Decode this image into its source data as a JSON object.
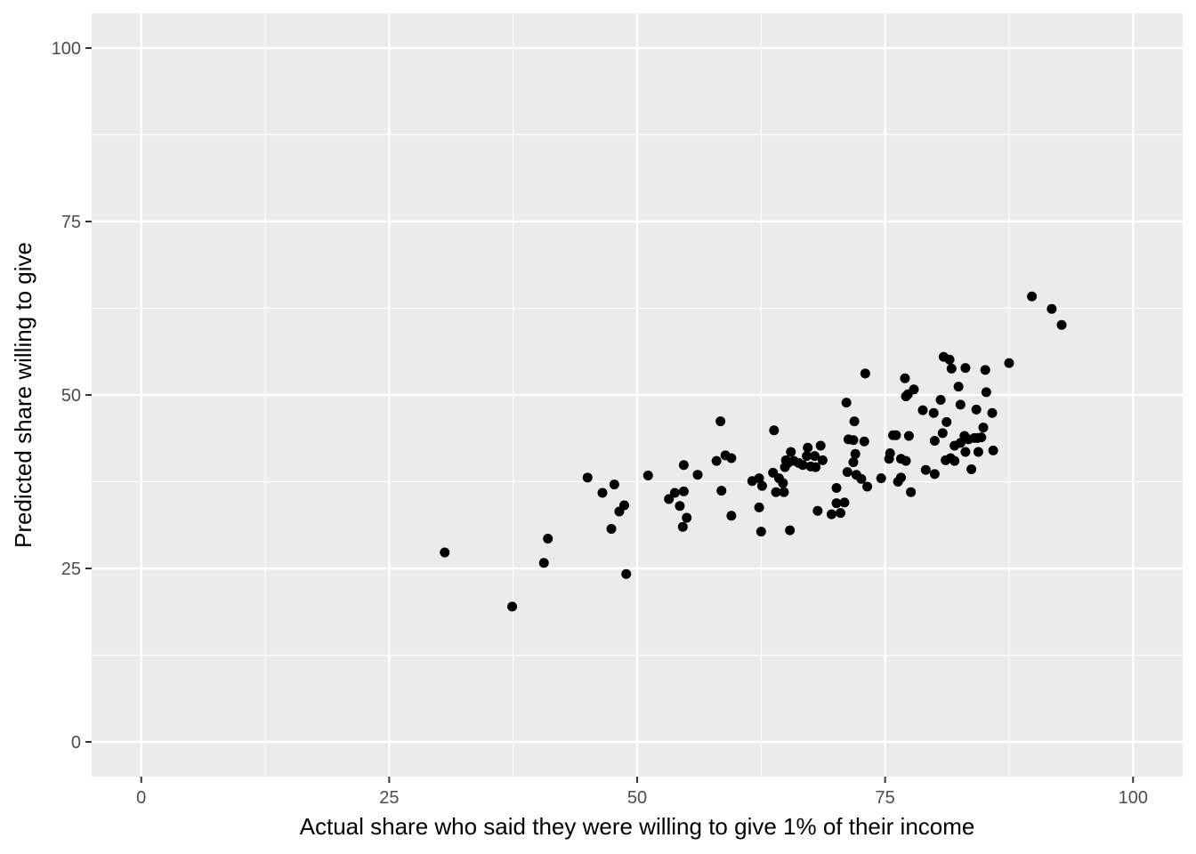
{
  "chart_data": {
    "type": "scatter",
    "xlabel": "Actual share who said they were willing to give 1% of their income",
    "ylabel": "Predicted share willing to give",
    "xlim": [
      -5,
      105
    ],
    "ylim": [
      -5,
      105
    ],
    "x_ticks": [
      0,
      25,
      50,
      75,
      100
    ],
    "y_ticks": [
      0,
      25,
      50,
      75,
      100
    ],
    "x_tick_labels": [
      "0",
      "25",
      "50",
      "75",
      "100"
    ],
    "y_tick_labels": [
      "0",
      "25",
      "50",
      "75",
      "100"
    ],
    "grid": true,
    "legend": "none",
    "colors": {
      "panel": "#ebebeb",
      "grid": "#ffffff",
      "point": "#000000"
    },
    "points": [
      [
        30.6,
        27.3
      ],
      [
        37.4,
        19.5
      ],
      [
        40.6,
        25.8
      ],
      [
        41.0,
        29.3
      ],
      [
        45.0,
        38.1
      ],
      [
        46.5,
        35.9
      ],
      [
        47.4,
        30.7
      ],
      [
        47.7,
        37.1
      ],
      [
        48.2,
        33.2
      ],
      [
        48.7,
        34.1
      ],
      [
        48.9,
        24.2
      ],
      [
        51.1,
        38.4
      ],
      [
        53.2,
        35.0
      ],
      [
        53.8,
        35.9
      ],
      [
        54.3,
        34.0
      ],
      [
        54.6,
        31.0
      ],
      [
        54.7,
        36.1
      ],
      [
        54.7,
        39.9
      ],
      [
        55.0,
        32.3
      ],
      [
        56.1,
        38.5
      ],
      [
        58.0,
        40.5
      ],
      [
        58.4,
        46.2
      ],
      [
        58.5,
        36.2
      ],
      [
        58.9,
        41.3
      ],
      [
        59.5,
        40.9
      ],
      [
        59.5,
        32.6
      ],
      [
        61.6,
        37.6
      ],
      [
        62.3,
        38.0
      ],
      [
        62.3,
        33.8
      ],
      [
        62.5,
        30.3
      ],
      [
        62.6,
        36.9
      ],
      [
        63.7,
        38.8
      ],
      [
        63.8,
        44.9
      ],
      [
        64.0,
        36.0
      ],
      [
        64.3,
        38.0
      ],
      [
        64.7,
        37.3
      ],
      [
        64.8,
        36.0
      ],
      [
        64.9,
        39.6
      ],
      [
        65.0,
        40.6
      ],
      [
        65.2,
        40.2
      ],
      [
        65.4,
        30.5
      ],
      [
        65.5,
        41.8
      ],
      [
        65.8,
        40.5
      ],
      [
        66.3,
        40.2
      ],
      [
        66.7,
        39.9
      ],
      [
        67.1,
        41.2
      ],
      [
        67.2,
        42.4
      ],
      [
        67.5,
        39.7
      ],
      [
        67.9,
        41.2
      ],
      [
        68.0,
        39.6
      ],
      [
        68.2,
        33.3
      ],
      [
        68.5,
        42.7
      ],
      [
        68.7,
        40.6
      ],
      [
        69.6,
        32.8
      ],
      [
        70.1,
        34.4
      ],
      [
        70.1,
        36.6
      ],
      [
        70.5,
        33.0
      ],
      [
        70.9,
        34.5
      ],
      [
        71.1,
        48.9
      ],
      [
        71.2,
        38.9
      ],
      [
        71.3,
        43.6
      ],
      [
        71.8,
        43.5
      ],
      [
        71.8,
        40.3
      ],
      [
        71.9,
        46.2
      ],
      [
        72.0,
        41.5
      ],
      [
        72.1,
        38.5
      ],
      [
        72.6,
        37.9
      ],
      [
        72.9,
        43.3
      ],
      [
        73.0,
        53.1
      ],
      [
        73.2,
        36.8
      ],
      [
        74.6,
        38.0
      ],
      [
        75.4,
        40.8
      ],
      [
        75.5,
        41.6
      ],
      [
        75.8,
        44.2
      ],
      [
        76.1,
        44.2
      ],
      [
        76.3,
        37.5
      ],
      [
        76.6,
        40.8
      ],
      [
        76.6,
        38.1
      ],
      [
        77.0,
        52.4
      ],
      [
        77.1,
        49.8
      ],
      [
        77.1,
        40.5
      ],
      [
        77.3,
        50.1
      ],
      [
        77.4,
        44.1
      ],
      [
        77.6,
        36.0
      ],
      [
        77.9,
        50.8
      ],
      [
        78.8,
        47.8
      ],
      [
        79.1,
        39.2
      ],
      [
        79.9,
        47.4
      ],
      [
        80.0,
        38.6
      ],
      [
        80.0,
        43.4
      ],
      [
        80.6,
        49.3
      ],
      [
        80.8,
        44.5
      ],
      [
        80.9,
        55.5
      ],
      [
        81.1,
        40.6
      ],
      [
        81.2,
        46.1
      ],
      [
        81.5,
        55.1
      ],
      [
        81.6,
        40.9
      ],
      [
        81.7,
        53.8
      ],
      [
        82.0,
        40.5
      ],
      [
        82.0,
        42.7
      ],
      [
        82.4,
        51.2
      ],
      [
        82.6,
        43.1
      ],
      [
        82.6,
        48.6
      ],
      [
        83.0,
        44.1
      ],
      [
        83.1,
        53.9
      ],
      [
        83.1,
        41.8
      ],
      [
        83.4,
        43.6
      ],
      [
        83.7,
        39.3
      ],
      [
        84.0,
        43.8
      ],
      [
        84.2,
        47.9
      ],
      [
        84.3,
        43.8
      ],
      [
        84.4,
        41.8
      ],
      [
        84.7,
        43.9
      ],
      [
        84.9,
        45.3
      ],
      [
        85.1,
        53.6
      ],
      [
        85.2,
        50.4
      ],
      [
        85.8,
        47.4
      ],
      [
        85.9,
        42.0
      ],
      [
        87.5,
        54.6
      ],
      [
        89.8,
        64.2
      ],
      [
        91.8,
        62.4
      ],
      [
        92.8,
        60.1
      ]
    ]
  }
}
